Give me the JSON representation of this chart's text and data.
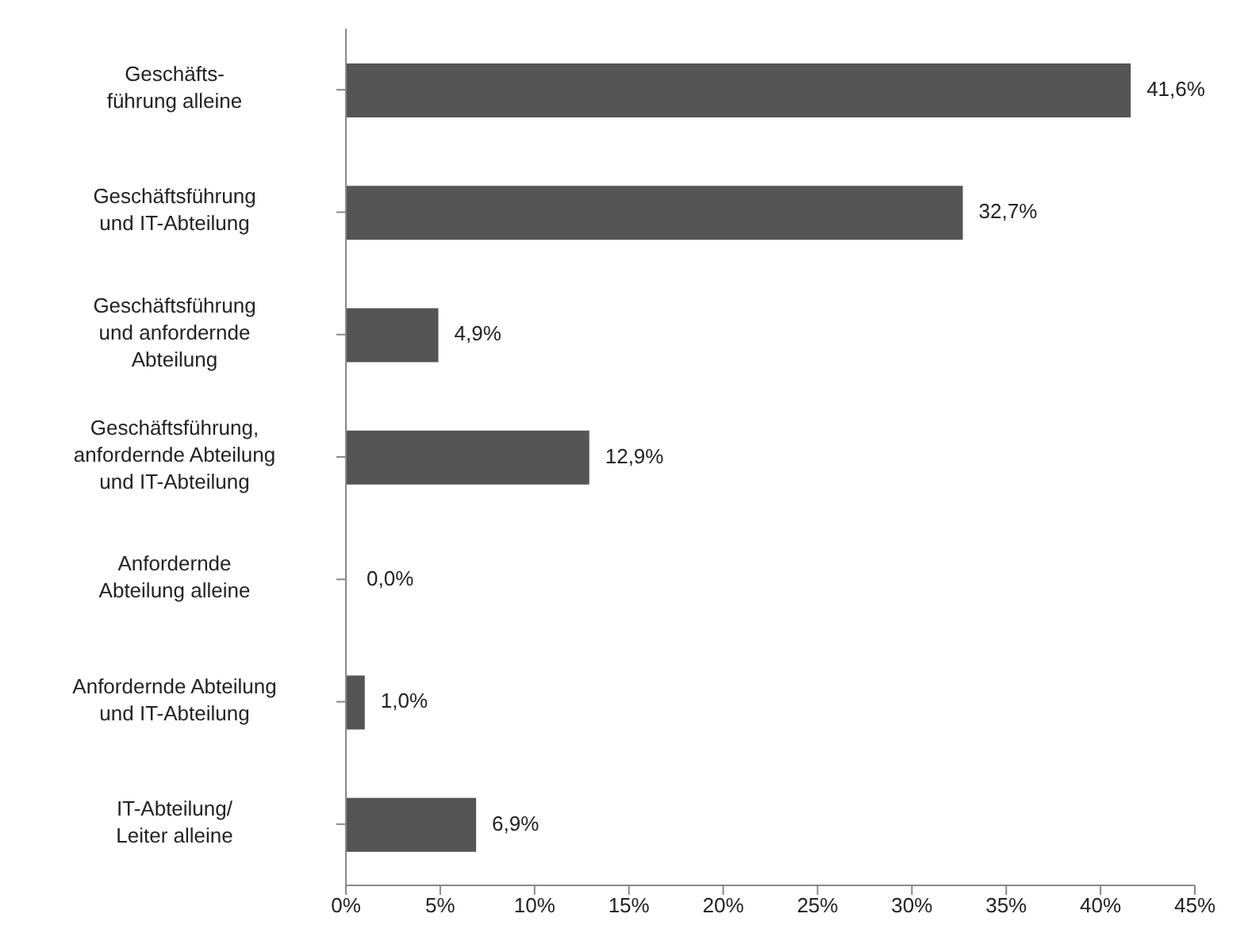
{
  "chart_data": {
    "type": "bar",
    "orientation": "horizontal",
    "categories": [
      "Geschäfts-\nführung alleine",
      "Geschäftsführung\nund IT-Abteilung",
      "Geschäftsführung\nund anfordernde\nAbteilung",
      "Geschäftsführung,\nanfordernde Abteilung\nund IT-Abteilung",
      "Anfordernde\nAbteilung alleine",
      "Anfordernde Abteilung\nund IT-Abteilung",
      "IT-Abteilung/\nLeiter alleine"
    ],
    "values": [
      41.6,
      32.7,
      4.9,
      12.9,
      0.0,
      1.0,
      6.9
    ],
    "value_labels": [
      "41,6%",
      "32,7%",
      "4,9%",
      "12,9%",
      "0,0%",
      "1,0%",
      "6,9%"
    ],
    "color": "#555555",
    "xlim": [
      0,
      45
    ],
    "xticks": [
      {
        "value": 0,
        "label": "0%"
      },
      {
        "value": 5,
        "label": "5%"
      },
      {
        "value": 10,
        "label": "10%"
      },
      {
        "value": 15,
        "label": "15%"
      },
      {
        "value": 20,
        "label": "20%"
      },
      {
        "value": 25,
        "label": "25%"
      },
      {
        "value": 30,
        "label": "30%"
      },
      {
        "value": 35,
        "label": "35%"
      },
      {
        "value": 40,
        "label": "40%"
      },
      {
        "value": 45,
        "label": "45%"
      }
    ],
    "grid": false,
    "legend": false
  }
}
